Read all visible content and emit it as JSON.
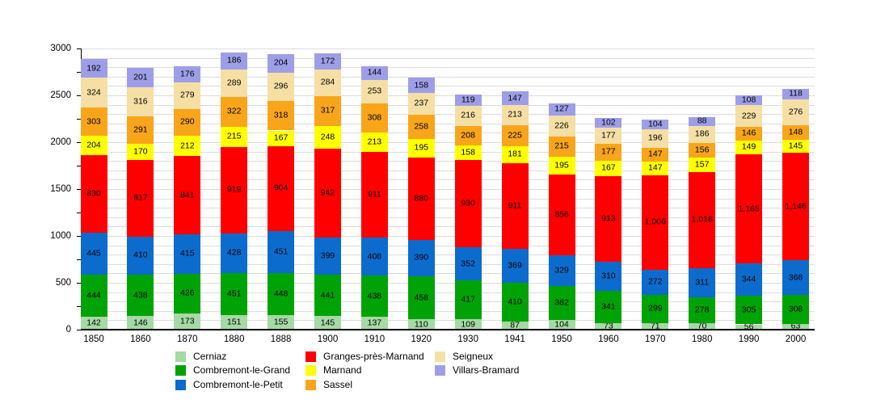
{
  "chart_data": {
    "type": "bar",
    "stacked": true,
    "title": "",
    "xlabel": "",
    "ylabel": "",
    "ylim": [
      0,
      3000
    ],
    "yticks": [
      0,
      500,
      1000,
      1500,
      2000,
      2500,
      3000
    ],
    "minor_tick_step": 250,
    "gridline_step": 100,
    "grid": "horizontal",
    "legend_position": "bottom",
    "background_color": "#ffffff",
    "gridline_color": "#dcdcdc",
    "axis_color": "#000000",
    "categories": [
      "1850",
      "1860",
      "1870",
      "1880",
      "1888",
      "1900",
      "1910",
      "1920",
      "1930",
      "1941",
      "1950",
      "1960",
      "1970",
      "1980",
      "1990",
      "2000"
    ],
    "series": [
      {
        "name": "Cerniaz",
        "color": "#a5d9a5",
        "values": [
          142,
          146,
          173,
          151,
          155,
          145,
          137,
          110,
          109,
          87,
          104,
          73,
          71,
          70,
          56,
          63
        ]
      },
      {
        "name": "Combremont-le-Grand",
        "color": "#00a305",
        "values": [
          444,
          438,
          426,
          451,
          448,
          441,
          438,
          458,
          417,
          410,
          362,
          341,
          299,
          278,
          305,
          308
        ]
      },
      {
        "name": "Combremont-le-Petit",
        "color": "#0b6ccd",
        "values": [
          445,
          410,
          415,
          428,
          451,
          399,
          408,
          390,
          352,
          369,
          329,
          310,
          272,
          311,
          344,
          368
        ]
      },
      {
        "name": "Granges-près-Marnand",
        "color": "#ff0000",
        "values": [
          830,
          817,
          841,
          919,
          904,
          942,
          911,
          880,
          930,
          911,
          856,
          913,
          1006,
          1018,
          1165,
          1146
        ]
      },
      {
        "name": "Marnand",
        "color": "#ffff00",
        "values": [
          204,
          170,
          212,
          215,
          167,
          248,
          213,
          195,
          158,
          181,
          195,
          167,
          147,
          157,
          149,
          145
        ]
      },
      {
        "name": "Sassel",
        "color": "#f9a51a",
        "values": [
          303,
          291,
          290,
          322,
          318,
          317,
          308,
          258,
          208,
          225,
          215,
          177,
          147,
          156,
          146,
          148
        ]
      },
      {
        "name": "Seigneux",
        "color": "#f5dfa5",
        "values": [
          324,
          316,
          279,
          289,
          296,
          284,
          253,
          237,
          216,
          213,
          226,
          177,
          196,
          186,
          229,
          276
        ]
      },
      {
        "name": "Villars-Bramard",
        "color": "#9e9ee8",
        "values": [
          192,
          201,
          176,
          186,
          204,
          172,
          144,
          158,
          119,
          147,
          127,
          102,
          104,
          88,
          108,
          118
        ]
      }
    ],
    "legend_columns": [
      [
        "Cerniaz",
        "Combremont-le-Grand",
        "Combremont-le-Petit"
      ],
      [
        "Granges-près-Marnand",
        "Marnand",
        "Sassel"
      ],
      [
        "Seigneux",
        "Villars-Bramard"
      ]
    ]
  }
}
